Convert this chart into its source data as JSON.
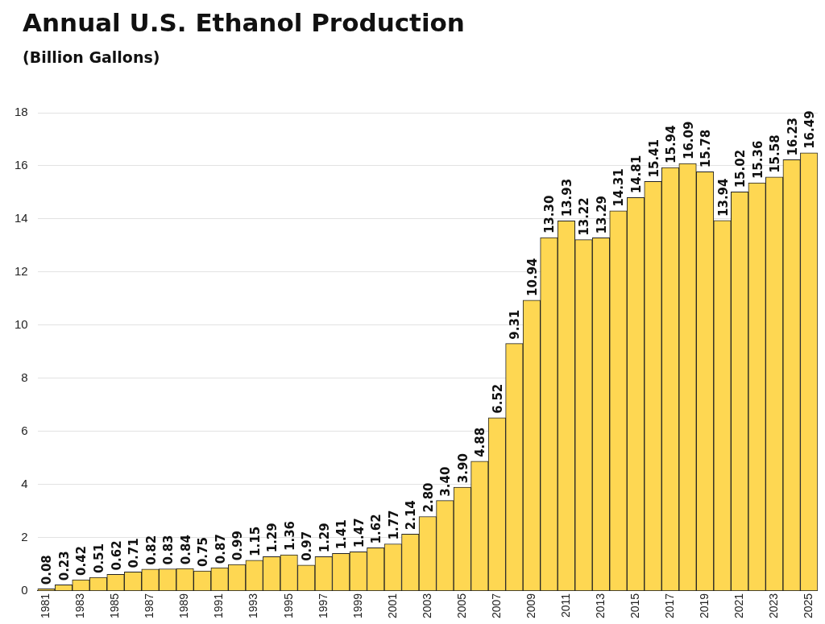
{
  "chart_data": {
    "type": "bar",
    "title": "Annual U.S. Ethanol Production",
    "subtitle": "(Billion Gallons)",
    "categories": [
      "1981",
      null,
      "1983",
      null,
      "1985",
      null,
      "1987",
      null,
      "1989",
      null,
      "1991",
      null,
      "1993",
      null,
      "1995",
      null,
      "1997",
      null,
      "1999",
      null,
      "2001",
      null,
      "2003",
      null,
      "2005",
      null,
      "2007",
      null,
      "2009",
      null,
      "2011",
      null,
      "2013",
      null,
      "2015",
      null,
      "2017",
      null,
      "2019",
      null,
      "2021",
      null,
      "2023",
      null,
      "2025"
    ],
    "values": [
      0.08,
      0.23,
      0.42,
      0.51,
      0.62,
      0.71,
      0.82,
      0.83,
      0.84,
      0.75,
      0.87,
      0.99,
      1.15,
      1.29,
      1.36,
      0.97,
      1.29,
      1.41,
      1.47,
      1.62,
      1.77,
      2.14,
      2.8,
      3.4,
      3.9,
      4.88,
      6.52,
      9.31,
      10.94,
      13.3,
      13.93,
      13.22,
      13.29,
      14.31,
      14.81,
      15.41,
      15.94,
      16.09,
      15.78,
      13.94,
      15.02,
      15.36,
      15.58,
      16.23,
      16.49
    ],
    "value_labels": [
      "0.08",
      "0.23",
      "0.42",
      "0.51",
      "0.62",
      "0.71",
      "0.82",
      "0.83",
      "0.84",
      "0.75",
      "0.87",
      "0.99",
      "1.15",
      "1.29",
      "1.36",
      "0.97",
      "1.29",
      "1.41",
      "1.47",
      "1.62",
      "1.77",
      "2.14",
      "2.80",
      "3.40",
      "3.90",
      "4.88",
      "6.52",
      "9.31",
      "10.94",
      "13.30",
      "13.93",
      "13.22",
      "13.29",
      "14.31",
      "14.81",
      "15.41",
      "15.94",
      "16.09",
      "15.78",
      "13.94",
      "15.02",
      "15.36",
      "15.58",
      "16.23",
      "16.49"
    ],
    "color": "#fed752",
    "ylim": [
      0,
      18
    ],
    "yticks": [
      0,
      2,
      4,
      6,
      8,
      10,
      12,
      14,
      16,
      18
    ],
    "grid": "y",
    "legend": false
  }
}
